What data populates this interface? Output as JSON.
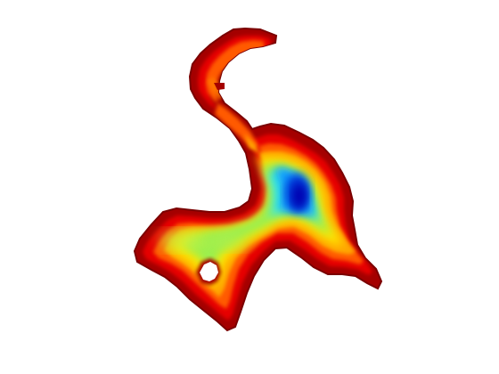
{
  "figure": {
    "background_color": "#ffffff",
    "colormap": "jet",
    "colormap_stops": [
      "#8b0000",
      "#e60000",
      "#ff5a00",
      "#ffb000",
      "#ffff3c",
      "#8cf05a",
      "#3cf0e6",
      "#00c8ff",
      "#0050ff",
      "#0000b4"
    ],
    "title": "",
    "axes_visible": false,
    "colorbar_visible": false,
    "interior_hole_present": true
  }
}
